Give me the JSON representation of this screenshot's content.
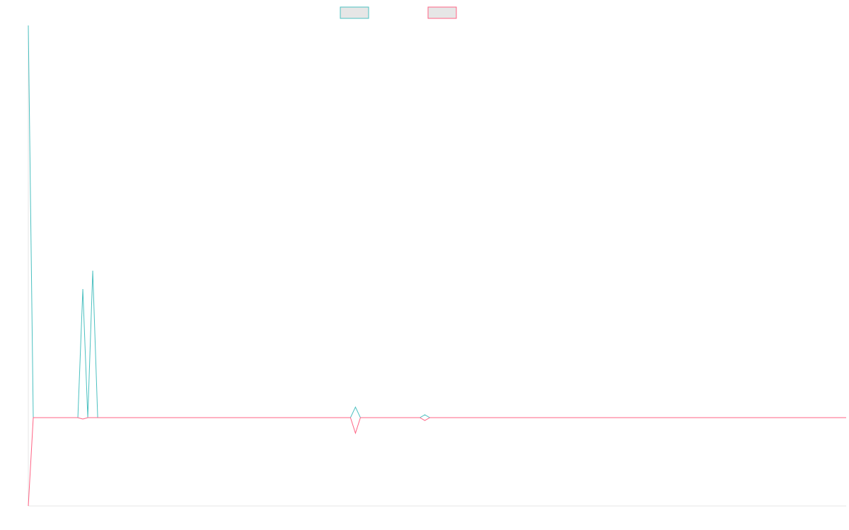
{
  "chart_data": {
    "type": "line",
    "title": "",
    "xlabel": "",
    "ylabel": "",
    "grid": false,
    "legend_position": "top-center",
    "x": [
      0,
      1,
      2,
      3,
      4,
      5,
      6,
      7,
      8,
      9,
      10,
      11,
      12,
      13,
      14,
      15,
      16,
      17,
      18,
      19,
      20,
      21,
      22,
      23,
      24,
      25,
      26,
      27,
      28,
      29,
      30,
      31,
      32,
      33,
      34,
      35,
      36,
      37,
      38,
      39,
      40,
      41,
      42,
      43,
      44,
      45,
      46,
      47,
      48,
      49,
      50,
      51,
      52,
      53,
      54,
      55,
      56,
      57,
      58,
      59,
      60,
      61,
      62,
      63,
      64,
      65,
      66,
      67,
      68,
      69,
      70,
      71,
      72,
      73,
      74,
      75,
      76,
      77,
      78,
      79,
      80,
      81,
      82,
      83,
      84,
      85,
      86,
      87,
      88,
      89,
      90,
      91,
      92,
      93,
      94,
      95,
      96,
      97,
      98,
      99,
      100,
      101,
      102,
      103,
      104,
      105,
      106,
      107,
      108,
      109,
      110,
      111,
      112,
      113,
      114,
      115,
      116,
      117,
      118,
      119,
      120,
      121,
      122,
      123,
      124,
      125,
      126,
      127,
      128,
      129,
      130,
      131,
      132,
      133,
      134,
      135,
      136,
      137,
      138,
      139,
      140,
      141,
      142,
      143,
      144,
      145,
      146,
      147,
      148,
      149,
      150,
      151,
      152,
      153,
      154,
      155,
      156,
      157,
      158,
      159,
      160,
      161,
      162,
      163,
      164,
      165
    ],
    "ylim": [
      -125,
      555
    ],
    "series": [
      {
        "name": "",
        "color": "#4bc0c0",
        "values": [
          555,
          0,
          0,
          0,
          0,
          0,
          0,
          0,
          0,
          0,
          0,
          182,
          0,
          208,
          0,
          0,
          0,
          0,
          0,
          0,
          0,
          0,
          0,
          0,
          0,
          0,
          0,
          0,
          0,
          0,
          0,
          0,
          0,
          0,
          0,
          0,
          0,
          0,
          0,
          0,
          0,
          0,
          0,
          0,
          0,
          0,
          0,
          0,
          0,
          0,
          0,
          0,
          0,
          0,
          0,
          0,
          0,
          0,
          0,
          0,
          0,
          0,
          0,
          0,
          0,
          0,
          15,
          0,
          0,
          0,
          0,
          0,
          0,
          0,
          0,
          0,
          0,
          0,
          0,
          0,
          4,
          0,
          0,
          0,
          0,
          0,
          0,
          0,
          0,
          0,
          0,
          0,
          0,
          0,
          0,
          0,
          0,
          0,
          0,
          0,
          0,
          0,
          0,
          0,
          0,
          0,
          0,
          0,
          0,
          0,
          0,
          0,
          0,
          0,
          0,
          0,
          0,
          0,
          0,
          0,
          0,
          0,
          0,
          0,
          0,
          0,
          0,
          0,
          0,
          0,
          0,
          0,
          0,
          0,
          0,
          0,
          0,
          0,
          0,
          0,
          0,
          0,
          0,
          0,
          0,
          0,
          0,
          0,
          0,
          0,
          0,
          0,
          0,
          0,
          0,
          0,
          0,
          0,
          0,
          0,
          0,
          0,
          0,
          0,
          0,
          0
        ]
      },
      {
        "name": "",
        "color": "#ff6384",
        "values": [
          -125,
          0,
          0,
          0,
          0,
          0,
          0,
          0,
          0,
          0,
          0,
          -2,
          0,
          0,
          0,
          0,
          0,
          0,
          0,
          0,
          0,
          0,
          0,
          0,
          0,
          0,
          0,
          0,
          0,
          0,
          0,
          0,
          0,
          0,
          0,
          0,
          0,
          0,
          0,
          0,
          0,
          0,
          0,
          0,
          0,
          0,
          0,
          0,
          0,
          0,
          0,
          0,
          0,
          0,
          0,
          0,
          0,
          0,
          0,
          0,
          0,
          0,
          0,
          0,
          0,
          0,
          -22,
          0,
          0,
          0,
          0,
          0,
          0,
          0,
          0,
          0,
          0,
          0,
          0,
          0,
          -4,
          0,
          0,
          0,
          0,
          0,
          0,
          0,
          0,
          0,
          0,
          0,
          0,
          0,
          0,
          0,
          0,
          0,
          0,
          0,
          0,
          0,
          0,
          0,
          0,
          0,
          0,
          0,
          0,
          0,
          0,
          0,
          0,
          0,
          0,
          0,
          0,
          0,
          0,
          0,
          0,
          0,
          0,
          0,
          0,
          0,
          0,
          0,
          0,
          0,
          0,
          0,
          0,
          0,
          0,
          0,
          0,
          0,
          0,
          0,
          0,
          0,
          0,
          0,
          0,
          0,
          0,
          0,
          0,
          0,
          0,
          0,
          0,
          0,
          0,
          0,
          0,
          0,
          0,
          0,
          0,
          0,
          0,
          0,
          0,
          0
        ]
      }
    ]
  }
}
